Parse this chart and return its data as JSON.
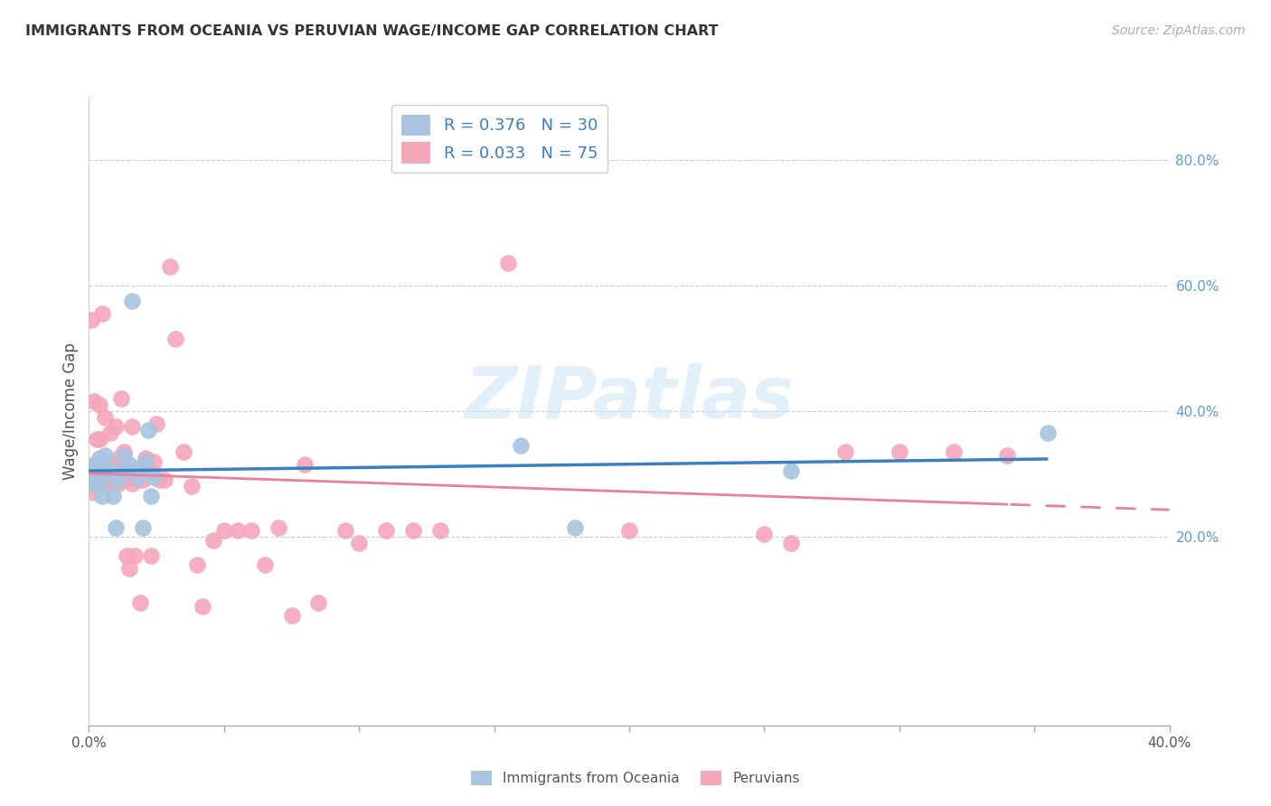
{
  "title": "IMMIGRANTS FROM OCEANIA VS PERUVIAN WAGE/INCOME GAP CORRELATION CHART",
  "source": "Source: ZipAtlas.com",
  "ylabel": "Wage/Income Gap",
  "xlim": [
    0.0,
    0.4
  ],
  "ylim": [
    -0.1,
    0.9
  ],
  "right_yticks": [
    0.2,
    0.4,
    0.6,
    0.8
  ],
  "right_yticklabels": [
    "20.0%",
    "40.0%",
    "60.0%",
    "80.0%"
  ],
  "xticks": [
    0.0,
    0.05,
    0.1,
    0.15,
    0.2,
    0.25,
    0.3,
    0.35,
    0.4
  ],
  "xtick_labels_show": {
    "0.0": "0.0%",
    "0.4": "40.0%"
  },
  "oceania_color": "#a8c4e0",
  "peruvian_color": "#f4a7b9",
  "oceania_line_color": "#3a7fc1",
  "peruvian_line_color": "#e87fa0",
  "watermark": "ZIPatlas",
  "oceania_points_x": [
    0.001,
    0.001,
    0.002,
    0.002,
    0.003,
    0.003,
    0.004,
    0.004,
    0.005,
    0.006,
    0.007,
    0.008,
    0.009,
    0.01,
    0.011,
    0.012,
    0.013,
    0.015,
    0.016,
    0.018,
    0.019,
    0.02,
    0.021,
    0.022,
    0.023,
    0.024,
    0.16,
    0.18,
    0.26,
    0.355
  ],
  "oceania_points_y": [
    0.285,
    0.31,
    0.295,
    0.315,
    0.29,
    0.305,
    0.285,
    0.325,
    0.265,
    0.33,
    0.31,
    0.3,
    0.265,
    0.215,
    0.29,
    0.305,
    0.33,
    0.315,
    0.575,
    0.295,
    0.31,
    0.215,
    0.32,
    0.37,
    0.265,
    0.295,
    0.345,
    0.215,
    0.305,
    0.365
  ],
  "peruvian_points_x": [
    0.001,
    0.001,
    0.001,
    0.002,
    0.002,
    0.002,
    0.003,
    0.003,
    0.003,
    0.004,
    0.004,
    0.004,
    0.005,
    0.005,
    0.005,
    0.006,
    0.006,
    0.007,
    0.007,
    0.008,
    0.008,
    0.009,
    0.009,
    0.01,
    0.01,
    0.011,
    0.011,
    0.012,
    0.012,
    0.013,
    0.013,
    0.014,
    0.015,
    0.015,
    0.016,
    0.016,
    0.017,
    0.018,
    0.019,
    0.02,
    0.021,
    0.022,
    0.023,
    0.024,
    0.025,
    0.026,
    0.028,
    0.03,
    0.032,
    0.035,
    0.038,
    0.04,
    0.042,
    0.046,
    0.05,
    0.055,
    0.06,
    0.065,
    0.07,
    0.075,
    0.08,
    0.085,
    0.095,
    0.1,
    0.11,
    0.12,
    0.13,
    0.155,
    0.2,
    0.25,
    0.26,
    0.28,
    0.3,
    0.32,
    0.34
  ],
  "peruvian_points_y": [
    0.285,
    0.305,
    0.545,
    0.27,
    0.31,
    0.415,
    0.295,
    0.305,
    0.355,
    0.305,
    0.355,
    0.41,
    0.28,
    0.305,
    0.555,
    0.3,
    0.39,
    0.295,
    0.285,
    0.305,
    0.365,
    0.29,
    0.315,
    0.305,
    0.375,
    0.285,
    0.325,
    0.315,
    0.42,
    0.29,
    0.335,
    0.17,
    0.15,
    0.305,
    0.285,
    0.375,
    0.17,
    0.29,
    0.095,
    0.29,
    0.325,
    0.305,
    0.17,
    0.32,
    0.38,
    0.29,
    0.29,
    0.63,
    0.515,
    0.335,
    0.28,
    0.155,
    0.09,
    0.195,
    0.21,
    0.21,
    0.21,
    0.155,
    0.215,
    0.075,
    0.315,
    0.095,
    0.21,
    0.19,
    0.21,
    0.21,
    0.21,
    0.635,
    0.21,
    0.205,
    0.19,
    0.335,
    0.335,
    0.335,
    0.33
  ]
}
